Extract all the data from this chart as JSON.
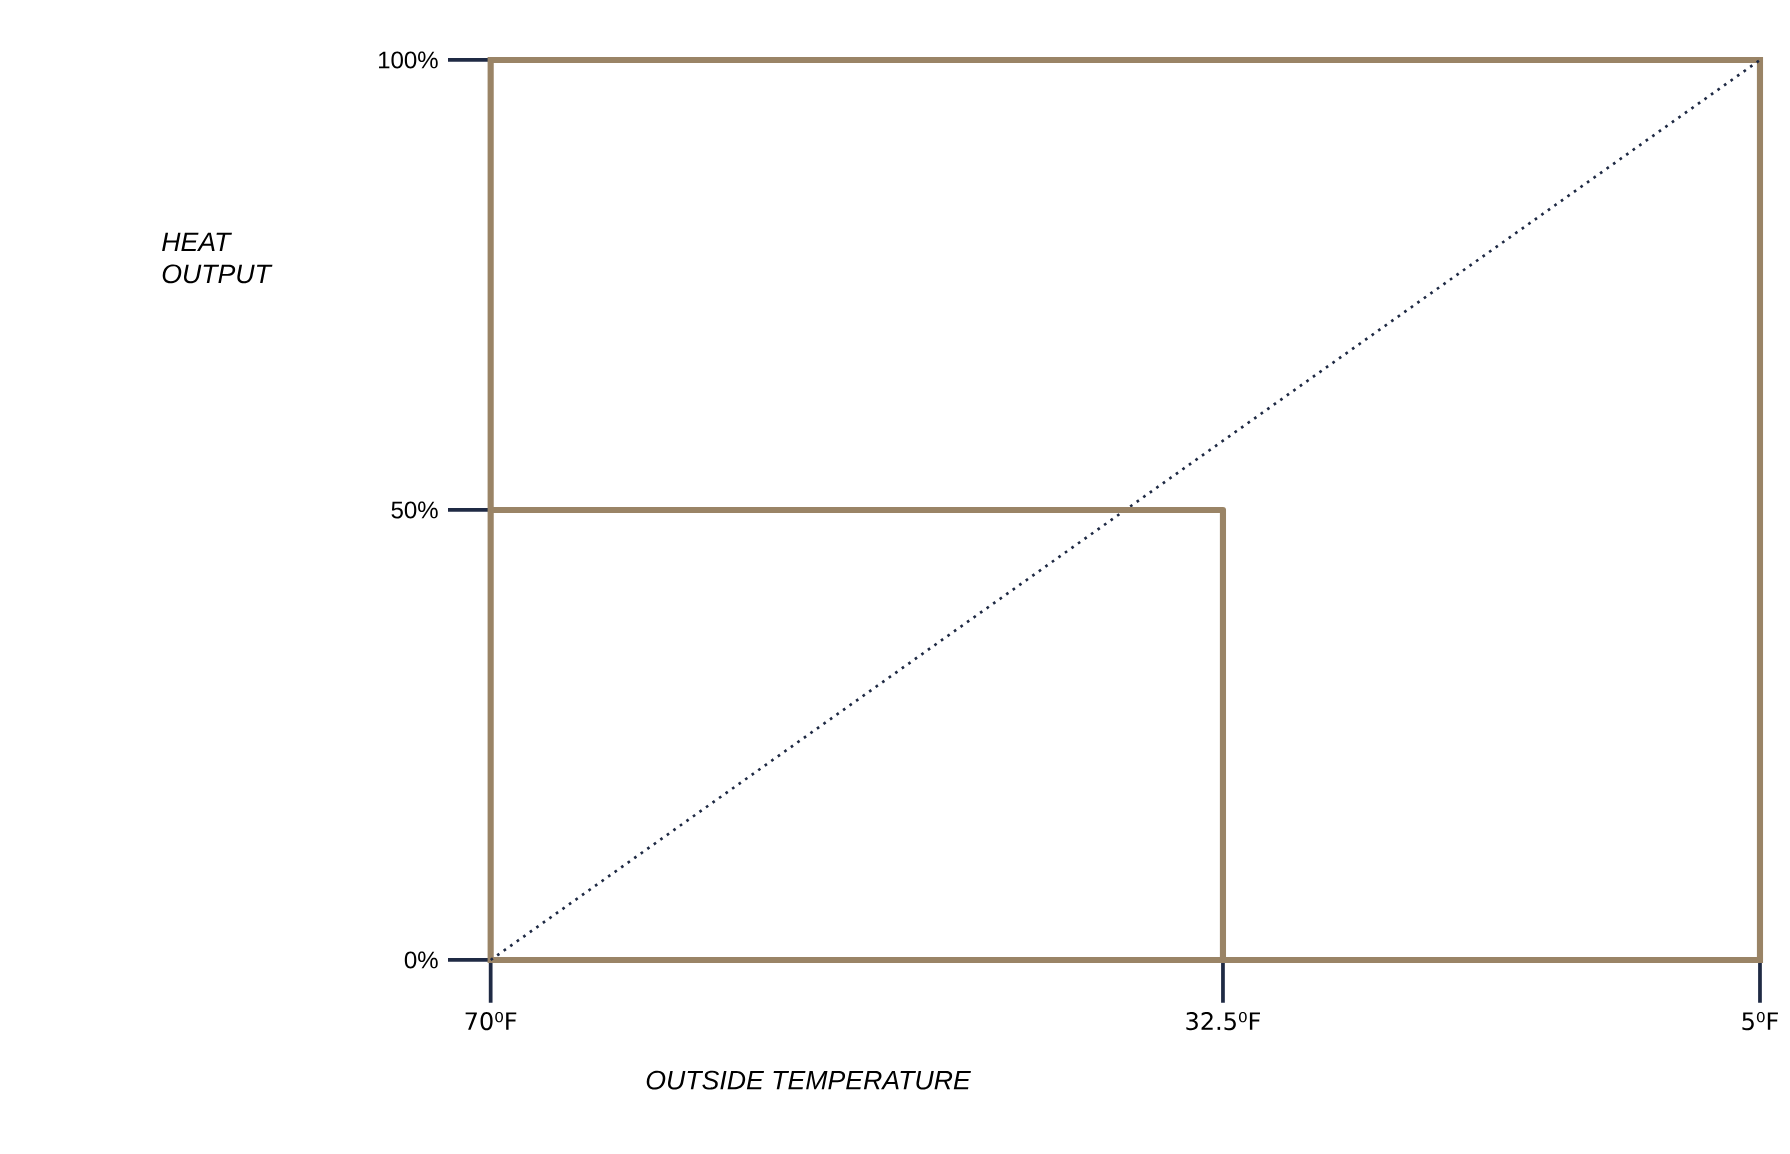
{
  "chart_data": {
    "type": "line",
    "xlabel": "OUTSIDE TEMPERATURE",
    "ylabel": "HEAT OUTPUT",
    "xlim": [
      70,
      5
    ],
    "ylim": [
      0,
      100
    ],
    "xticks": [
      {
        "value": 70,
        "label": "70⁰F"
      },
      {
        "value": 32.5,
        "label": "32.5⁰F"
      },
      {
        "value": 5,
        "label": "5⁰F"
      }
    ],
    "yticks": [
      {
        "value": 0,
        "label": "0%"
      },
      {
        "value": 50,
        "label": "50%"
      },
      {
        "value": 100,
        "label": "100%"
      }
    ],
    "series": [
      {
        "x": [
          70,
          5
        ],
        "values": [
          0,
          100
        ],
        "color": "#1f2a44",
        "line_style": "dotted"
      },
      {
        "x": [
          70,
          32.5,
          32.5
        ],
        "values": [
          50,
          50,
          0
        ],
        "color": "#9a8466",
        "line_style": "solid"
      }
    ]
  }
}
